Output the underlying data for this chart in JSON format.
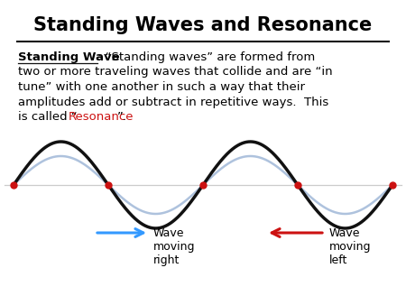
{
  "title": "Standing Waves and Resonance",
  "bg_color": "#ffffff",
  "wave_black_color": "#111111",
  "wave_blue_color": "#a0b8d8",
  "wave_red_dot_color": "#cc1111",
  "arrow_right_color": "#3399ff",
  "arrow_left_color": "#cc1111",
  "label_right": "Wave\nmoving\nright",
  "label_left": "Wave\nmoving\nleft",
  "font_family": "Comic Sans MS",
  "title_fontsize": 15,
  "body_fontsize": 9.5,
  "line1_normal": ": “Standing waves” are formed from",
  "line2": "two or more traveling waves that collide and are “in",
  "line3": "tune” with one another in such a way that their",
  "line4": "amplitudes add or subtract in repetitive ways.  This",
  "line5a": "is called “",
  "line5b": "Resonance",
  "line5c": "”."
}
